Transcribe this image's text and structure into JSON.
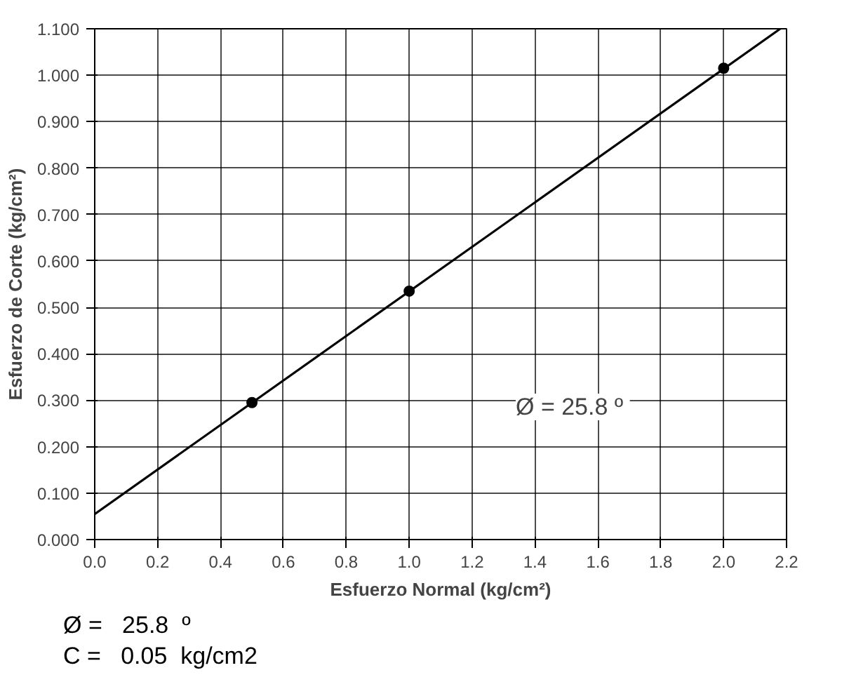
{
  "chart_data": {
    "type": "scatter",
    "xlabel": "Esfuerzo Normal (kg/cm²)",
    "ylabel": "Esfuerzo de Corte (kg/cm²)",
    "xlim": [
      0,
      2.2
    ],
    "ylim": [
      0,
      1.1
    ],
    "xticks": [
      {
        "value": 0,
        "label": "0.0"
      },
      {
        "value": 0.2,
        "label": "0.2"
      },
      {
        "value": 0.4,
        "label": "0.4"
      },
      {
        "value": 0.6,
        "label": "0.6"
      },
      {
        "value": 0.8,
        "label": "0.8"
      },
      {
        "value": 1.0,
        "label": "1.0"
      },
      {
        "value": 1.2,
        "label": "1.2"
      },
      {
        "value": 1.4,
        "label": "1.4"
      },
      {
        "value": 1.6,
        "label": "1.6"
      },
      {
        "value": 1.8,
        "label": "1.8"
      },
      {
        "value": 2.0,
        "label": "2.0"
      },
      {
        "value": 2.2,
        "label": "2.2"
      }
    ],
    "yticks": [
      {
        "value": 0,
        "label": "0.000"
      },
      {
        "value": 0.1,
        "label": "0.100"
      },
      {
        "value": 0.2,
        "label": "0.200"
      },
      {
        "value": 0.3,
        "label": "0.300"
      },
      {
        "value": 0.4,
        "label": "0.400"
      },
      {
        "value": 0.5,
        "label": "0.500"
      },
      {
        "value": 0.6,
        "label": "0.600"
      },
      {
        "value": 0.7,
        "label": "0.700"
      },
      {
        "value": 0.8,
        "label": "0.800"
      },
      {
        "value": 0.9,
        "label": "0.900"
      },
      {
        "value": 1.0,
        "label": "1.000"
      },
      {
        "value": 1.1,
        "label": "1.100"
      }
    ],
    "grid": true,
    "series": [
      {
        "color": "#000000",
        "marker": "circle",
        "x": [
          0.5,
          1.0,
          2.0
        ],
        "values": [
          0.295,
          0.535,
          1.015
        ]
      },
      {
        "type": "line",
        "marker": "none",
        "color": "#000000",
        "x": [
          0,
          2.18
        ],
        "values": [
          0.055,
          1.1
        ]
      }
    ],
    "annotations": [
      "Ø = 25.8  º",
      "Ø =   25.8  º",
      "C =   0.05  kg/cm2"
    ]
  }
}
